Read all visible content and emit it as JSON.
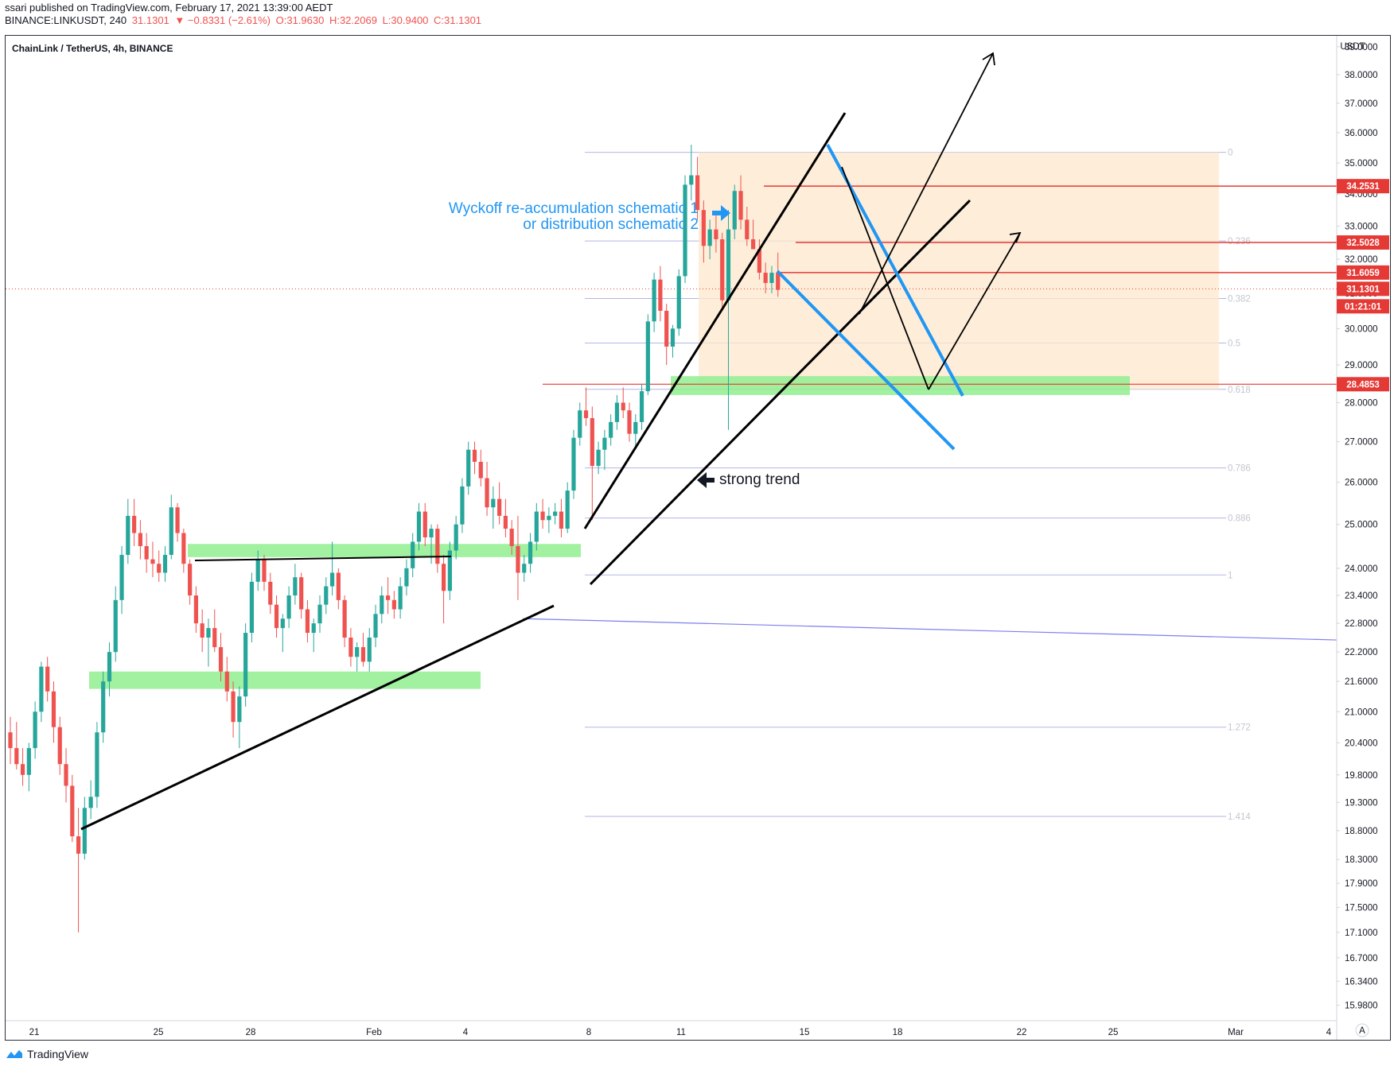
{
  "header": {
    "line1": "ssari published on TradingView.com, February 17, 2021 13:39:00 AEDT",
    "symbol": "BINANCE:LINKUSDT, 240",
    "last": "31.1301",
    "change": "▼ −0.8331 (−2.61%)",
    "ohlc_o": "O:31.9630",
    "ohlc_h": "H:32.2069",
    "ohlc_l": "L:30.9400",
    "ohlc_c": "C:31.1301"
  },
  "chart_title": "ChainLink / TetherUS, 4h, BINANCE",
  "footer": {
    "logo_text": "TradingView"
  },
  "colors": {
    "up": "#26a69a",
    "down": "#ef5350",
    "blue": "#2196f3",
    "zone": "#90ee90",
    "box": "#fde8cc",
    "red": "#e53935"
  },
  "chart_data": {
    "type": "candlestick",
    "currency": "USDT",
    "y_scale": "log",
    "ylim": [
      15.75,
      39.4
    ],
    "y_ticks": [
      "15.9800",
      "16.3400",
      "16.7000",
      "17.1000",
      "17.5000",
      "17.9000",
      "18.3000",
      "18.8000",
      "19.3000",
      "19.8000",
      "20.4000",
      "21.0000",
      "21.6000",
      "22.2000",
      "22.8000",
      "23.4000",
      "24.0000",
      "25.0000",
      "26.0000",
      "27.0000",
      "28.0000",
      "29.0000",
      "30.0000",
      "31.0000",
      "32.0000",
      "33.0000",
      "34.0000",
      "35.0000",
      "36.0000",
      "37.0000",
      "38.0000",
      "39.0000"
    ],
    "x_ticks": [
      "21",
      "25",
      "28",
      "Feb",
      "4",
      "8",
      "11",
      "15",
      "18",
      "22",
      "25",
      "Mar",
      "4"
    ],
    "price_tags": [
      {
        "label": "34.2531",
        "value": 34.2531
      },
      {
        "label": "32.5028",
        "value": 32.5028
      },
      {
        "label": "31.6059",
        "value": 31.6059
      },
      {
        "label": "31.1301",
        "value": 31.1301
      },
      {
        "label": "01:21:01",
        "value": 30.7
      },
      {
        "label": "28.4853",
        "value": 28.4853
      }
    ],
    "fib_levels": [
      {
        "label": "0",
        "value": 35.35
      },
      {
        "label": "0.236",
        "value": 32.55
      },
      {
        "label": "0.382",
        "value": 30.85
      },
      {
        "label": "0.5",
        "value": 29.6
      },
      {
        "label": "0.618",
        "value": 28.35
      },
      {
        "label": "0.786",
        "value": 26.35
      },
      {
        "label": "0.886",
        "value": 25.15
      },
      {
        "label": "1",
        "value": 23.85
      },
      {
        "label": "1.272",
        "value": 20.7
      },
      {
        "label": "1.414",
        "value": 19.05
      }
    ],
    "annotations": [
      {
        "text": "Wyckoff re-accumulation schematic 1"
      },
      {
        "text": "or distribution schematic 2"
      },
      {
        "text": "strong trend"
      }
    ],
    "series": [
      {
        "name": "LINKUSDT",
        "ohlc": [
          [
            20.6,
            20.9,
            20.0,
            20.3
          ],
          [
            20.3,
            20.8,
            19.9,
            20.0
          ],
          [
            20.0,
            20.3,
            19.6,
            19.8
          ],
          [
            19.8,
            20.4,
            19.5,
            20.3
          ],
          [
            20.3,
            21.2,
            20.1,
            21.0
          ],
          [
            21.0,
            22.0,
            20.8,
            21.9
          ],
          [
            21.9,
            22.1,
            21.2,
            21.4
          ],
          [
            21.4,
            21.6,
            20.4,
            20.7
          ],
          [
            20.7,
            20.9,
            19.8,
            20.0
          ],
          [
            20.0,
            20.3,
            19.3,
            19.6
          ],
          [
            19.6,
            19.8,
            18.6,
            18.7
          ],
          [
            18.7,
            19.2,
            17.1,
            18.4
          ],
          [
            18.4,
            19.4,
            18.3,
            19.2
          ],
          [
            19.2,
            19.7,
            19.0,
            19.4
          ],
          [
            19.4,
            20.8,
            19.2,
            20.6
          ],
          [
            20.6,
            21.8,
            20.4,
            21.6
          ],
          [
            21.6,
            22.4,
            21.3,
            22.2
          ],
          [
            22.2,
            23.6,
            22.0,
            23.3
          ],
          [
            23.3,
            24.5,
            23.0,
            24.3
          ],
          [
            24.3,
            25.6,
            24.1,
            25.2
          ],
          [
            25.2,
            25.6,
            24.5,
            24.8
          ],
          [
            24.8,
            25.1,
            24.2,
            24.5
          ],
          [
            24.5,
            24.8,
            23.9,
            24.2
          ],
          [
            24.2,
            24.6,
            23.8,
            24.1
          ],
          [
            24.1,
            24.4,
            23.7,
            23.9
          ],
          [
            23.9,
            24.5,
            23.7,
            24.3
          ],
          [
            24.3,
            25.7,
            24.2,
            25.4
          ],
          [
            25.4,
            25.5,
            24.6,
            24.8
          ],
          [
            24.8,
            24.9,
            23.9,
            24.1
          ],
          [
            24.1,
            24.2,
            23.2,
            23.4
          ],
          [
            23.4,
            23.6,
            22.6,
            22.8
          ],
          [
            22.8,
            23.1,
            22.2,
            22.5
          ],
          [
            22.5,
            22.9,
            21.9,
            22.7
          ],
          [
            22.7,
            23.1,
            22.2,
            22.3
          ],
          [
            22.3,
            22.6,
            21.6,
            21.8
          ],
          [
            21.8,
            22.1,
            21.2,
            21.4
          ],
          [
            21.4,
            21.6,
            20.5,
            20.8
          ],
          [
            20.8,
            21.5,
            20.3,
            21.3
          ],
          [
            21.3,
            22.8,
            21.1,
            22.6
          ],
          [
            22.6,
            23.9,
            22.4,
            23.7
          ],
          [
            23.7,
            24.4,
            23.5,
            24.2
          ],
          [
            24.2,
            24.3,
            23.5,
            23.7
          ],
          [
            23.7,
            23.9,
            23.0,
            23.2
          ],
          [
            23.2,
            23.4,
            22.5,
            22.7
          ],
          [
            22.7,
            23.0,
            22.2,
            22.9
          ],
          [
            22.9,
            23.6,
            22.7,
            23.4
          ],
          [
            23.4,
            24.1,
            23.2,
            23.8
          ],
          [
            23.8,
            23.9,
            22.9,
            23.1
          ],
          [
            23.1,
            23.3,
            22.4,
            22.6
          ],
          [
            22.6,
            22.9,
            22.2,
            22.8
          ],
          [
            22.8,
            23.4,
            22.6,
            23.2
          ],
          [
            23.2,
            23.8,
            23.0,
            23.6
          ],
          [
            23.6,
            24.6,
            23.4,
            23.9
          ],
          [
            23.9,
            24.0,
            23.1,
            23.3
          ],
          [
            23.3,
            23.4,
            22.3,
            22.5
          ],
          [
            22.5,
            22.7,
            21.9,
            22.1
          ],
          [
            22.1,
            22.4,
            21.8,
            22.3
          ],
          [
            22.3,
            22.6,
            21.9,
            22.0
          ],
          [
            22.0,
            22.7,
            21.8,
            22.5
          ],
          [
            22.5,
            23.2,
            22.3,
            23.0
          ],
          [
            23.0,
            23.6,
            22.8,
            23.4
          ],
          [
            23.4,
            23.8,
            23.0,
            23.3
          ],
          [
            23.3,
            23.5,
            22.9,
            23.1
          ],
          [
            23.1,
            23.8,
            22.9,
            23.6
          ],
          [
            23.6,
            24.2,
            23.4,
            24.0
          ],
          [
            24.0,
            24.8,
            23.8,
            24.6
          ],
          [
            24.6,
            25.5,
            24.4,
            25.3
          ],
          [
            25.3,
            25.5,
            24.5,
            24.7
          ],
          [
            24.7,
            25.0,
            24.1,
            24.9
          ],
          [
            24.9,
            25.0,
            23.9,
            24.1
          ],
          [
            24.1,
            24.3,
            22.8,
            23.5
          ],
          [
            23.5,
            24.6,
            23.3,
            24.4
          ],
          [
            24.4,
            25.2,
            24.2,
            25.0
          ],
          [
            25.0,
            26.1,
            24.8,
            25.9
          ],
          [
            25.9,
            27.0,
            25.7,
            26.8
          ],
          [
            26.8,
            27.0,
            26.2,
            26.5
          ],
          [
            26.5,
            26.8,
            25.9,
            26.1
          ],
          [
            26.1,
            26.5,
            25.2,
            25.4
          ],
          [
            25.4,
            25.9,
            24.9,
            25.6
          ],
          [
            25.6,
            26.0,
            25.0,
            25.2
          ],
          [
            25.2,
            25.6,
            24.7,
            24.9
          ],
          [
            24.9,
            25.1,
            24.3,
            24.5
          ],
          [
            24.5,
            25.2,
            23.3,
            23.9
          ],
          [
            23.9,
            24.3,
            23.7,
            24.1
          ],
          [
            24.1,
            24.8,
            23.9,
            24.6
          ],
          [
            24.6,
            25.5,
            24.4,
            25.3
          ],
          [
            25.3,
            25.6,
            24.9,
            25.1
          ],
          [
            25.1,
            25.4,
            24.8,
            25.2
          ],
          [
            25.2,
            25.5,
            25.0,
            25.3
          ],
          [
            25.3,
            25.6,
            24.7,
            24.9
          ],
          [
            24.9,
            26.0,
            24.8,
            25.8
          ],
          [
            25.8,
            27.3,
            25.6,
            27.1
          ],
          [
            27.1,
            28.0,
            26.9,
            27.8
          ],
          [
            27.8,
            28.4,
            27.4,
            27.6
          ],
          [
            27.6,
            27.9,
            25.1,
            26.4
          ],
          [
            26.4,
            27.0,
            26.2,
            26.8
          ],
          [
            26.8,
            27.3,
            26.3,
            27.1
          ],
          [
            27.1,
            27.7,
            26.9,
            27.5
          ],
          [
            27.5,
            28.2,
            27.3,
            28.0
          ],
          [
            28.0,
            28.4,
            27.6,
            27.8
          ],
          [
            27.8,
            28.0,
            27.0,
            27.2
          ],
          [
            27.2,
            27.7,
            26.9,
            27.5
          ],
          [
            27.5,
            28.5,
            27.3,
            28.3
          ],
          [
            28.3,
            30.4,
            28.2,
            30.2
          ],
          [
            30.2,
            31.6,
            29.9,
            31.4
          ],
          [
            31.4,
            31.8,
            30.2,
            30.5
          ],
          [
            30.5,
            30.7,
            29.0,
            29.5
          ],
          [
            29.5,
            30.1,
            29.2,
            30.0
          ],
          [
            30.0,
            31.7,
            29.8,
            31.5
          ],
          [
            31.5,
            34.6,
            31.3,
            34.3
          ],
          [
            34.3,
            35.6,
            33.8,
            34.6
          ],
          [
            34.6,
            35.2,
            33.2,
            33.5
          ],
          [
            33.5,
            33.8,
            31.9,
            32.4
          ],
          [
            32.4,
            33.2,
            32.0,
            32.9
          ],
          [
            32.9,
            33.4,
            32.2,
            32.6
          ],
          [
            32.6,
            32.8,
            30.6,
            30.8
          ],
          [
            30.8,
            33.5,
            27.3,
            32.9
          ],
          [
            32.9,
            34.3,
            32.6,
            34.1
          ],
          [
            34.1,
            34.6,
            32.9,
            33.2
          ],
          [
            33.2,
            33.6,
            32.4,
            32.6
          ],
          [
            32.6,
            33.2,
            32.3,
            32.3
          ],
          [
            32.3,
            32.6,
            31.4,
            31.6
          ],
          [
            31.6,
            31.9,
            31.0,
            31.3
          ],
          [
            31.3,
            31.8,
            31.0,
            31.6
          ],
          [
            31.6,
            32.2,
            30.9,
            31.1
          ]
        ]
      }
    ]
  }
}
